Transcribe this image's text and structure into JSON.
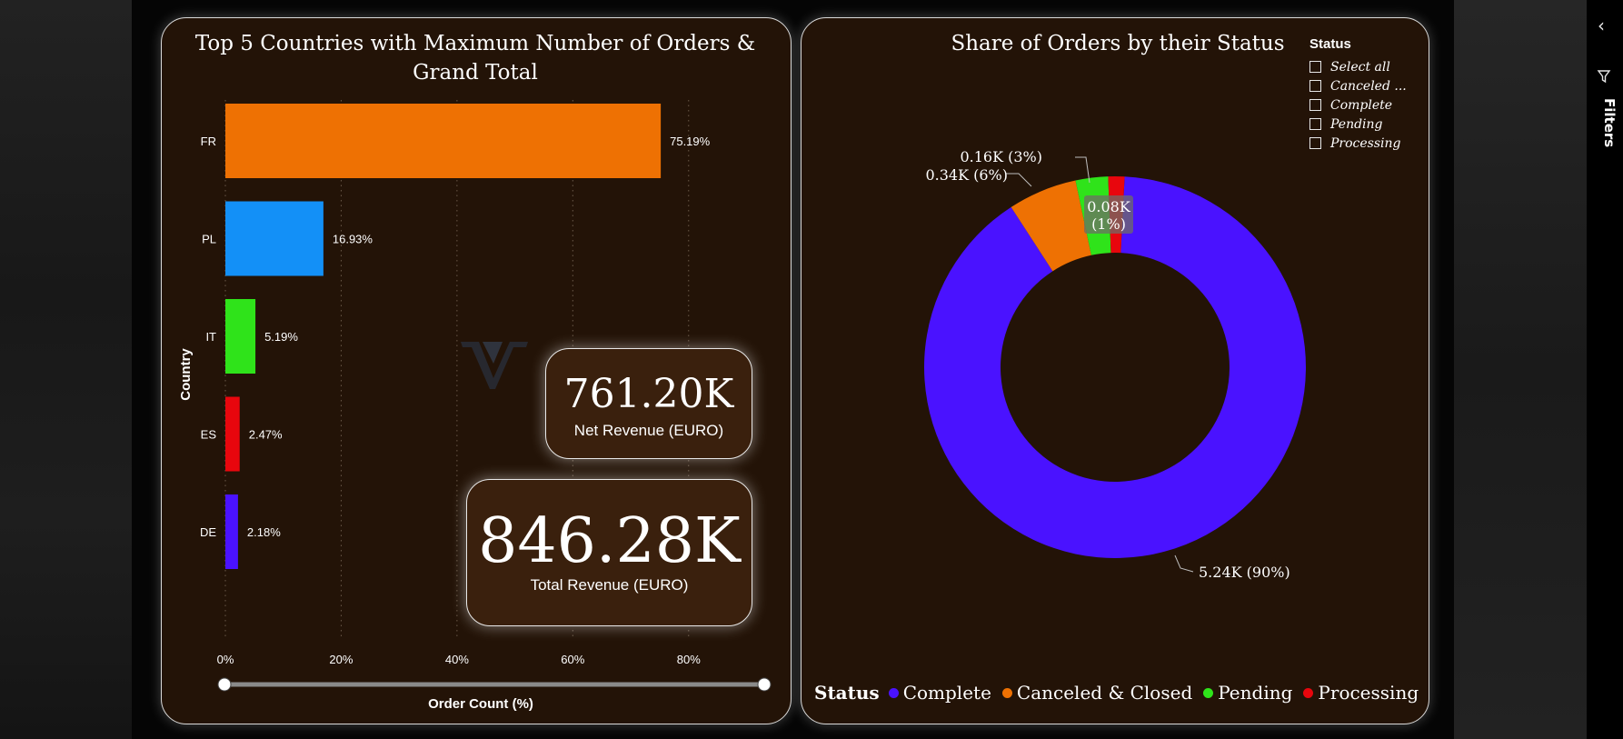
{
  "filters_pane": {
    "label": "Filters",
    "icon": "funnel-icon",
    "collapse_icon": "chevron-left-icon"
  },
  "bar_card": {
    "title_line1": "Top 5 Countries with Maximum Number of Orders &",
    "title_line2": "Grand Total"
  },
  "kpis": {
    "net_revenue": {
      "value": "761.20K",
      "label": "Net Revenue (EURO)"
    },
    "total_revenue": {
      "value": "846.28K",
      "label": "Total Revenue (EURO)"
    }
  },
  "donut_card": {
    "title": "Share of Orders by their Status"
  },
  "slicer": {
    "title": "Status",
    "items": [
      "Select all",
      "Canceled ...",
      "Complete",
      "Pending",
      "Processing"
    ]
  },
  "donut_legend": {
    "title": "Status",
    "items": [
      {
        "label": "Complete",
        "color": "#4a12ff"
      },
      {
        "label": "Canceled & Closed",
        "color": "#ee7103"
      },
      {
        "label": "Pending",
        "color": "#2fe31a"
      },
      {
        "label": "Processing",
        "color": "#e8060d"
      }
    ]
  },
  "chart_data": [
    {
      "type": "bar",
      "orientation": "horizontal",
      "title": "Top 5 Countries with Maximum Number of Orders & Grand Total",
      "xlabel": "Order Count (%)",
      "ylabel": "Country",
      "categories": [
        "FR",
        "PL",
        "IT",
        "ES",
        "DE"
      ],
      "values": [
        75.19,
        16.93,
        5.19,
        2.47,
        2.18
      ],
      "data_labels": [
        "75.19%",
        "16.93%",
        "5.19%",
        "2.47%",
        "2.18%"
      ],
      "colors": [
        "#ee7103",
        "#1390f7",
        "#2fe31a",
        "#e8060d",
        "#4a12ff"
      ],
      "xlim": [
        0,
        86
      ],
      "xticks": [
        0,
        20,
        40,
        60,
        80
      ],
      "xtick_labels": [
        "0%",
        "20%",
        "40%",
        "60%",
        "80%"
      ],
      "grid": "vertical dotted"
    },
    {
      "type": "pie",
      "style": "donut",
      "title": "Share of Orders by their Status",
      "categories": [
        "Complete",
        "Canceled & Closed",
        "Pending",
        "Processing"
      ],
      "values": [
        5.24,
        0.34,
        0.16,
        0.08
      ],
      "percentages": [
        90,
        6,
        3,
        1
      ],
      "data_labels": [
        "5.24K (90%)",
        "0.34K (6%)",
        "0.16K (3%)",
        "0.08K (1%)"
      ],
      "colors": [
        "#4a12ff",
        "#ee7103",
        "#2fe31a",
        "#e8060d"
      ],
      "legend": "bottom"
    }
  ]
}
